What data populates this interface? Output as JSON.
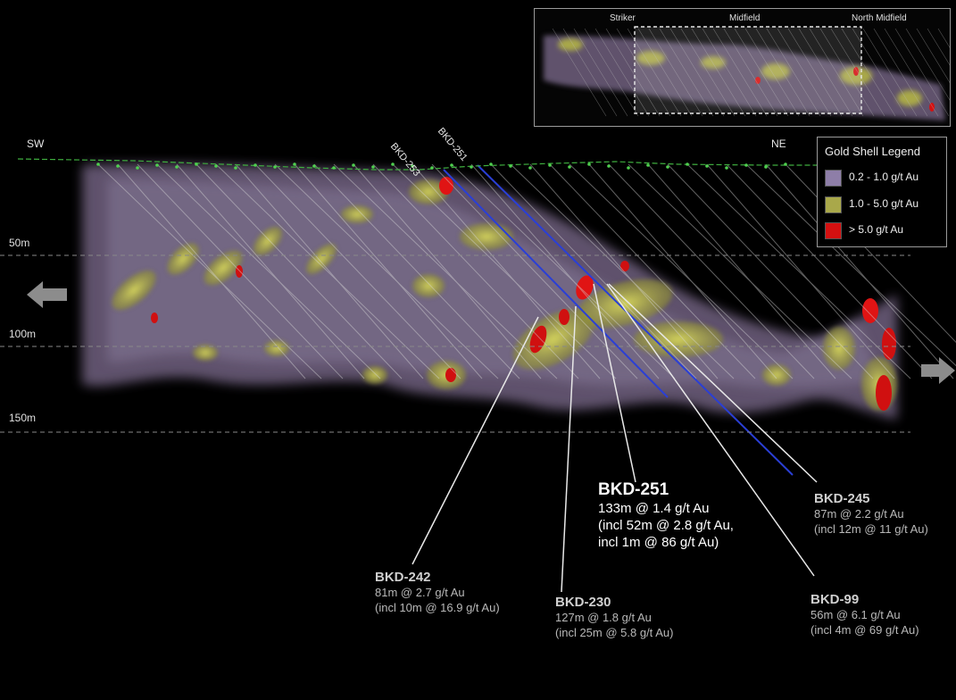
{
  "directions": {
    "left": "SW",
    "right": "NE"
  },
  "depths": [
    "50m",
    "100m",
    "150m"
  ],
  "drillhole_labels": [
    "BKD-253",
    "BKD-251"
  ],
  "inset": {
    "labels": [
      "Striker",
      "Midfield",
      "North Midfield"
    ]
  },
  "legend": {
    "title": "Gold Shell Legend",
    "items": [
      {
        "label": "0.2 - 1.0 g/t Au",
        "color": "#8e7ea8"
      },
      {
        "label": "1.0 - 5.0 g/t Au",
        "color": "#a9a84a"
      },
      {
        "label": "> 5.0 g/t Au",
        "color": "#d41010"
      }
    ]
  },
  "colors": {
    "drill_trace_highlight": "#2a3fd6",
    "surface_topo": "#3fae3f",
    "background": "#000000"
  },
  "icons": {
    "left_arrow": "arrow-left-icon",
    "right_arrow": "arrow-right-icon"
  },
  "intercepts": [
    {
      "hole": "BKD-251",
      "lines": [
        "133m @ 1.4 g/t Au",
        "(incl 52m @ 2.8 g/t Au,",
        "incl 1m @ 86 g/t Au)"
      ]
    },
    {
      "hole": "BKD-245",
      "lines": [
        "87m @ 2.2 g/t Au",
        "(incl 12m @ 11 g/t Au)"
      ]
    },
    {
      "hole": "BKD-242",
      "lines": [
        "81m @ 2.7 g/t Au",
        "(incl 10m @ 16.9 g/t Au)"
      ]
    },
    {
      "hole": "BKD-230",
      "lines": [
        "127m @ 1.8 g/t Au",
        "(incl 25m @ 5.8 g/t Au)"
      ]
    },
    {
      "hole": "BKD-99",
      "lines": [
        "56m @ 6.1 g/t Au",
        "(incl 4m @ 69 g/t Au)"
      ]
    }
  ]
}
